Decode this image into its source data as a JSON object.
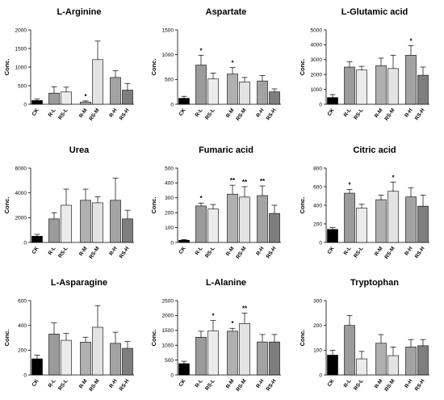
{
  "chart_data": [
    {
      "type": "bar",
      "title": "L-Arginine",
      "ylabel": "Conc.",
      "categories": [
        "CK",
        "R-L",
        "RS-L",
        "R-M",
        "RS-M",
        "R-H",
        "RS-H"
      ],
      "values": [
        100,
        300,
        330,
        60,
        1200,
        720,
        380
      ],
      "errors": [
        40,
        170,
        130,
        30,
        500,
        180,
        180
      ],
      "stars": [
        "",
        "",
        "",
        "*",
        "",
        "",
        ""
      ],
      "ylim": [
        0,
        2000
      ],
      "yticks": [
        "0",
        "500",
        "1000",
        "1500",
        "2000"
      ]
    },
    {
      "type": "bar",
      "title": "Aspartate",
      "ylabel": "Conc.",
      "categories": [
        "CK",
        "R-L",
        "RS-L",
        "R-M",
        "RS-M",
        "R-H",
        "RS-H"
      ],
      "values": [
        120,
        790,
        510,
        610,
        450,
        470,
        250
      ],
      "errors": [
        40,
        200,
        120,
        130,
        90,
        110,
        60
      ],
      "stars": [
        "",
        "*",
        "",
        "*",
        "",
        "",
        ""
      ],
      "ylim": [
        0,
        1500
      ],
      "yticks": [
        "0",
        "500",
        "1000",
        "1500"
      ]
    },
    {
      "type": "bar",
      "title": "L-Glutamic acid",
      "ylabel": "Conc.",
      "categories": [
        "CK",
        "R-L",
        "RS-L",
        "R-M",
        "RS-M",
        "R-H",
        "RS-H"
      ],
      "values": [
        450,
        2500,
        2300,
        2600,
        2400,
        3300,
        1950
      ],
      "errors": [
        200,
        350,
        250,
        500,
        900,
        650,
        550
      ],
      "stars": [
        "",
        "",
        "",
        "",
        "",
        "*",
        ""
      ],
      "ylim": [
        0,
        5000
      ],
      "yticks": [
        "0",
        "1000",
        "2000",
        "3000",
        "4000",
        "5000"
      ]
    },
    {
      "type": "bar",
      "title": "Urea",
      "ylabel": "Conc.",
      "categories": [
        "CK",
        "R-L",
        "RS-L",
        "R-M",
        "RS-M",
        "R-H",
        "RS-H"
      ],
      "values": [
        500,
        1900,
        3000,
        3400,
        3200,
        3400,
        1900
      ],
      "errors": [
        150,
        500,
        1300,
        900,
        500,
        1800,
        700
      ],
      "stars": [
        "",
        "",
        "",
        "",
        "",
        "",
        ""
      ],
      "ylim": [
        0,
        6000
      ],
      "yticks": [
        "0",
        "2000",
        "4000",
        "6000"
      ]
    },
    {
      "type": "bar",
      "title": "Fumaric acid",
      "ylabel": "Conc.",
      "categories": [
        "CK",
        "R-L",
        "RS-L",
        "R-M",
        "RS-M",
        "R-H",
        "RS-H"
      ],
      "values": [
        15,
        245,
        225,
        325,
        305,
        315,
        195
      ],
      "errors": [
        5,
        20,
        30,
        60,
        70,
        65,
        55
      ],
      "stars": [
        "",
        "*",
        "",
        "**",
        "**",
        "**",
        ""
      ],
      "ylim": [
        0,
        500
      ],
      "yticks": [
        "0",
        "100",
        "200",
        "300",
        "400",
        "500"
      ]
    },
    {
      "type": "bar",
      "title": "Citric acid",
      "ylabel": "Conc.",
      "categories": [
        "CK",
        "R-L",
        "RS-L",
        "R-M",
        "RS-M",
        "R-H",
        "RS-H"
      ],
      "values": [
        140,
        530,
        370,
        460,
        550,
        490,
        390
      ],
      "errors": [
        20,
        40,
        40,
        50,
        100,
        100,
        120
      ],
      "stars": [
        "",
        "*",
        "",
        "",
        "*",
        "",
        ""
      ],
      "ylim": [
        0,
        800
      ],
      "yticks": [
        "0",
        "200",
        "400",
        "600",
        "800"
      ]
    },
    {
      "type": "bar",
      "title": "L-Asparagine",
      "ylabel": "Conc.",
      "categories": [
        "CK",
        "R-L",
        "RS-L",
        "R-M",
        "RS-M",
        "R-H",
        "RS-H"
      ],
      "values": [
        130,
        330,
        280,
        265,
        385,
        255,
        215
      ],
      "errors": [
        30,
        90,
        55,
        40,
        175,
        90,
        55
      ],
      "stars": [
        "",
        "",
        "",
        "",
        "",
        "",
        ""
      ],
      "ylim": [
        0,
        600
      ],
      "yticks": [
        "0",
        "200",
        "400",
        "600"
      ]
    },
    {
      "type": "bar",
      "title": "L-Alanine",
      "ylabel": "Conc.",
      "categories": [
        "CK",
        "R-L",
        "RS-L",
        "R-M",
        "RS-M",
        "R-H",
        "RS-H"
      ],
      "values": [
        380,
        1270,
        1480,
        1470,
        1730,
        1110,
        1110
      ],
      "errors": [
        80,
        200,
        350,
        100,
        350,
        250,
        250
      ],
      "stars": [
        "",
        "",
        "*",
        "*",
        "**",
        "",
        ""
      ],
      "ylim": [
        0,
        2500
      ],
      "yticks": [
        "0",
        "500",
        "1000",
        "1500",
        "2000",
        "2500"
      ]
    },
    {
      "type": "bar",
      "title": "Tryptophan",
      "ylabel": "Conc.",
      "categories": [
        "CK",
        "R-L",
        "RS-L",
        "R-M",
        "RS-M",
        "R-H",
        "RS-H"
      ],
      "values": [
        80,
        200,
        65,
        128,
        78,
        113,
        118
      ],
      "errors": [
        20,
        40,
        30,
        35,
        35,
        30,
        25
      ],
      "stars": [
        "",
        "",
        "",
        "",
        "",
        "",
        ""
      ],
      "ylim": [
        0,
        300
      ],
      "yticks": [
        "0",
        "100",
        "200",
        "300"
      ]
    }
  ],
  "colors": {
    "CK": "#000000",
    "R-L": "#9b9b9b",
    "RS-L": "#ebebeb",
    "R-M": "#b0b0b0",
    "RS-M": "#e3e3e3",
    "R-H": "#a3a3a3",
    "RS-H": "#7e7e7e"
  }
}
